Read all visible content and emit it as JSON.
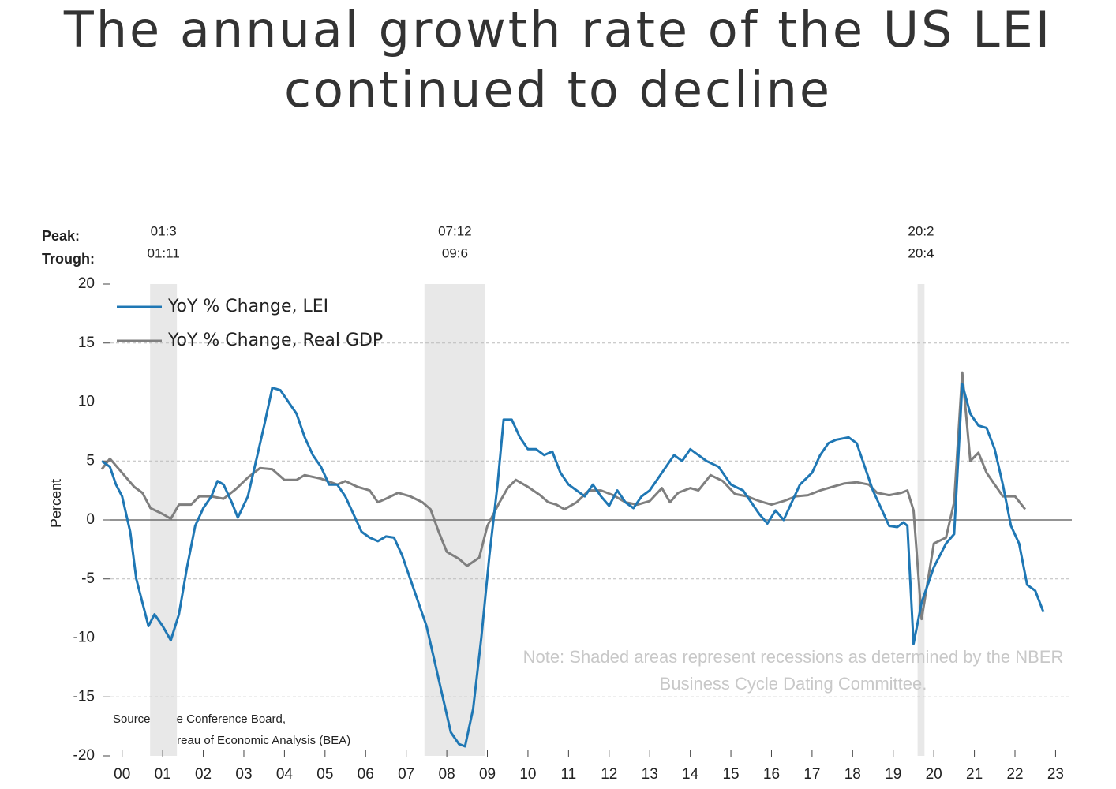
{
  "chart_data": {
    "type": "line",
    "title": "The annual growth rate of the US LEI continued to decline",
    "y_label": "Percent",
    "peak_label": "Peak:",
    "trough_label": "Trough:",
    "note": "Note: Shaded areas represent recessions as determined by the NBER Business Cycle Dating Committee.",
    "sources": [
      "Sources: The Conference Board,",
      "*Bureau of Economic Analysis (BEA)"
    ],
    "recessions": [
      {
        "peak": "01:3",
        "trough": "01:11",
        "start": 2001.19,
        "end": 2001.85
      },
      {
        "peak": "07:12",
        "trough": "09:6",
        "start": 2007.95,
        "end": 2009.45
      },
      {
        "peak": "20:2",
        "trough": "20:4",
        "start": 2020.1,
        "end": 2020.27
      }
    ],
    "xlim": [
      2000,
      2023.9
    ],
    "xticks": [
      {
        "value": 2000.5,
        "label": "00"
      },
      {
        "value": 2001.5,
        "label": "01"
      },
      {
        "value": 2002.5,
        "label": "02"
      },
      {
        "value": 2003.5,
        "label": "03"
      },
      {
        "value": 2004.5,
        "label": "04"
      },
      {
        "value": 2005.5,
        "label": "05"
      },
      {
        "value": 2006.5,
        "label": "06"
      },
      {
        "value": 2007.5,
        "label": "07"
      },
      {
        "value": 2008.5,
        "label": "08"
      },
      {
        "value": 2009.5,
        "label": "09"
      },
      {
        "value": 2010.5,
        "label": "10"
      },
      {
        "value": 2011.5,
        "label": "11"
      },
      {
        "value": 2012.5,
        "label": "12"
      },
      {
        "value": 2013.5,
        "label": "13"
      },
      {
        "value": 2014.5,
        "label": "14"
      },
      {
        "value": 2015.5,
        "label": "15"
      },
      {
        "value": 2016.5,
        "label": "16"
      },
      {
        "value": 2017.5,
        "label": "17"
      },
      {
        "value": 2018.5,
        "label": "18"
      },
      {
        "value": 2019.5,
        "label": "19"
      },
      {
        "value": 2020.5,
        "label": "20"
      },
      {
        "value": 2021.5,
        "label": "21"
      },
      {
        "value": 2022.5,
        "label": "22"
      },
      {
        "value": 2023.5,
        "label": "23"
      }
    ],
    "ylim": [
      -20,
      20
    ],
    "yticks": [
      -20,
      -15,
      -10,
      -5,
      0,
      5,
      10,
      15,
      20
    ],
    "grid": true,
    "legend": "top-left",
    "series": [
      {
        "name": "YoY % Change, LEI",
        "color": "#1f77b4",
        "x": [
          2000.0,
          2000.2,
          2000.35,
          2000.5,
          2000.7,
          2000.85,
          2001.0,
          2001.15,
          2001.3,
          2001.5,
          2001.7,
          2001.9,
          2002.1,
          2002.3,
          2002.5,
          2002.7,
          2002.85,
          2003.0,
          2003.2,
          2003.35,
          2003.6,
          2003.8,
          2004.0,
          2004.2,
          2004.4,
          2004.6,
          2004.8,
          2005.0,
          2005.2,
          2005.4,
          2005.6,
          2005.8,
          2006.0,
          2006.2,
          2006.4,
          2006.6,
          2006.8,
          2007.0,
          2007.2,
          2007.4,
          2007.6,
          2007.8,
          2008.0,
          2008.2,
          2008.4,
          2008.6,
          2008.8,
          2008.95,
          2009.15,
          2009.35,
          2009.55,
          2009.75,
          2009.9,
          2010.1,
          2010.3,
          2010.5,
          2010.7,
          2010.9,
          2011.1,
          2011.3,
          2011.5,
          2011.7,
          2011.9,
          2012.1,
          2012.3,
          2012.5,
          2012.7,
          2012.9,
          2013.1,
          2013.3,
          2013.5,
          2013.7,
          2013.9,
          2014.1,
          2014.3,
          2014.5,
          2014.7,
          2014.9,
          2015.2,
          2015.5,
          2015.8,
          2016.0,
          2016.2,
          2016.4,
          2016.6,
          2016.8,
          2017.0,
          2017.2,
          2017.5,
          2017.7,
          2017.9,
          2018.1,
          2018.4,
          2018.6,
          2018.8,
          2019.0,
          2019.2,
          2019.4,
          2019.6,
          2019.75,
          2019.85,
          2020.0,
          2020.2,
          2020.5,
          2020.8,
          2021.0,
          2021.2,
          2021.4,
          2021.6,
          2021.8,
          2022.0,
          2022.2,
          2022.4,
          2022.6,
          2022.8,
          2023.0,
          2023.2
        ],
        "values": [
          5,
          4.5,
          3,
          2,
          -1,
          -5,
          -7,
          -9,
          -8,
          -9,
          -10.2,
          -8,
          -4,
          -0.5,
          1,
          2,
          3.3,
          3,
          1.5,
          0.2,
          2,
          5,
          8,
          11.2,
          11,
          10,
          9,
          7,
          5.5,
          4.5,
          3,
          3,
          2,
          0.5,
          -1,
          -1.5,
          -1.8,
          -1.4,
          -1.5,
          -3,
          -5,
          -7,
          -9,
          -12,
          -15,
          -18,
          -19,
          -19.2,
          -16,
          -10,
          -3,
          3,
          8.5,
          8.5,
          7,
          6,
          6,
          5.5,
          5.8,
          4,
          3,
          2.5,
          2,
          3,
          2,
          1.2,
          2.5,
          1.5,
          1,
          2,
          2.5,
          3.5,
          4.5,
          5.5,
          5,
          6,
          5.5,
          5,
          4.5,
          3,
          2.5,
          1.5,
          0.5,
          -0.3,
          0.8,
          0,
          1.5,
          3,
          4,
          5.5,
          6.5,
          6.8,
          7,
          6.5,
          4.5,
          2.5,
          1,
          -0.5,
          -0.6,
          -0.2,
          -0.5,
          -10.5,
          -7,
          -4,
          -2,
          -1.2,
          11.5,
          9,
          8,
          7.8,
          6,
          3,
          -0.5,
          -2,
          -5.5,
          -6,
          -7.8
        ]
      },
      {
        "name": "YoY % Change, Real GDP",
        "color": "#7f7f7f",
        "x": [
          2000.0,
          2000.2,
          2000.5,
          2000.8,
          2001.0,
          2001.2,
          2001.5,
          2001.7,
          2001.9,
          2002.2,
          2002.4,
          2002.7,
          2003.0,
          2003.3,
          2003.6,
          2003.9,
          2004.2,
          2004.5,
          2004.8,
          2005.0,
          2005.4,
          2005.8,
          2006.0,
          2006.3,
          2006.6,
          2006.8,
          2007.0,
          2007.3,
          2007.6,
          2007.9,
          2008.1,
          2008.3,
          2008.5,
          2008.8,
          2009.0,
          2009.3,
          2009.5,
          2009.8,
          2010.0,
          2010.2,
          2010.5,
          2010.8,
          2011.0,
          2011.2,
          2011.4,
          2011.7,
          2012.0,
          2012.3,
          2012.6,
          2012.9,
          2013.2,
          2013.5,
          2013.8,
          2014.0,
          2014.2,
          2014.5,
          2014.7,
          2015.0,
          2015.3,
          2015.6,
          2015.9,
          2016.2,
          2016.5,
          2016.8,
          2017.1,
          2017.4,
          2017.7,
          2018.0,
          2018.3,
          2018.6,
          2018.9,
          2019.1,
          2019.4,
          2019.7,
          2019.85,
          2020.0,
          2020.2,
          2020.5,
          2020.8,
          2021.0,
          2021.2,
          2021.4,
          2021.6,
          2021.8,
          2022.0,
          2022.2,
          2022.5,
          2022.75
        ],
        "values": [
          4.3,
          5.2,
          4,
          2.8,
          2.3,
          1,
          0.5,
          0.1,
          1.3,
          1.3,
          2,
          2,
          1.8,
          2.6,
          3.6,
          4.4,
          4.3,
          3.4,
          3.4,
          3.8,
          3.5,
          3,
          3.3,
          2.8,
          2.5,
          1.5,
          1.8,
          2.3,
          2,
          1.5,
          0.9,
          -1,
          -2.7,
          -3.3,
          -3.9,
          -3.2,
          -0.5,
          1.5,
          2.7,
          3.4,
          2.8,
          2.1,
          1.5,
          1.3,
          0.9,
          1.5,
          2.5,
          2.5,
          2.1,
          1.5,
          1.3,
          1.6,
          2.7,
          1.5,
          2.3,
          2.7,
          2.5,
          3.8,
          3.3,
          2.2,
          2,
          1.6,
          1.3,
          1.6,
          2,
          2.1,
          2.5,
          2.8,
          3.1,
          3.2,
          3,
          2.3,
          2.1,
          2.3,
          2.5,
          0.8,
          -8.4,
          -2,
          -1.5,
          1.5,
          12.5,
          5,
          5.7,
          4,
          3,
          2,
          2,
          0.9
        ]
      }
    ]
  }
}
